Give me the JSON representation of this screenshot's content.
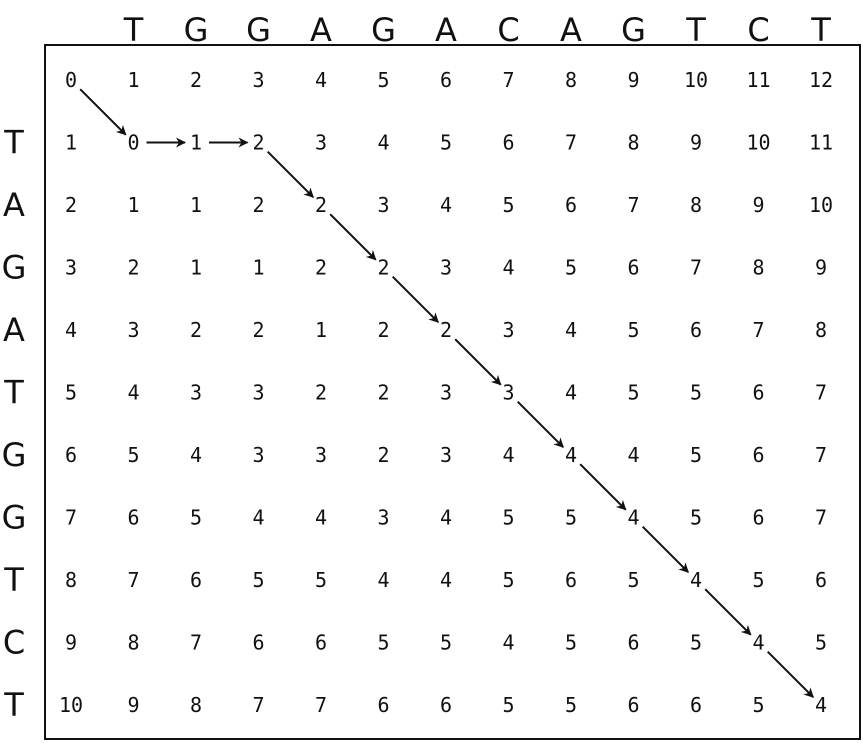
{
  "top_sequence": [
    "T",
    "G",
    "G",
    "A",
    "G",
    "A",
    "C",
    "A",
    "G",
    "T",
    "C",
    "T"
  ],
  "left_sequence": [
    "T",
    "A",
    "G",
    "A",
    "T",
    "G",
    "G",
    "T",
    "C",
    "T"
  ],
  "matrix": [
    [
      0,
      1,
      2,
      3,
      4,
      5,
      6,
      7,
      8,
      9,
      10,
      11,
      12
    ],
    [
      1,
      0,
      1,
      2,
      3,
      4,
      5,
      6,
      7,
      8,
      9,
      10,
      11
    ],
    [
      2,
      1,
      1,
      2,
      2,
      3,
      4,
      5,
      6,
      7,
      8,
      9,
      10
    ],
    [
      3,
      2,
      1,
      1,
      2,
      2,
      3,
      4,
      5,
      6,
      7,
      8,
      9
    ],
    [
      4,
      3,
      2,
      2,
      1,
      2,
      2,
      3,
      4,
      5,
      6,
      7,
      8
    ],
    [
      5,
      4,
      3,
      3,
      2,
      2,
      3,
      3,
      4,
      5,
      5,
      6,
      7
    ],
    [
      6,
      5,
      4,
      3,
      3,
      2,
      3,
      4,
      4,
      4,
      5,
      6,
      7
    ],
    [
      7,
      6,
      5,
      4,
      4,
      3,
      4,
      5,
      5,
      4,
      5,
      6,
      7
    ],
    [
      8,
      7,
      6,
      5,
      5,
      4,
      4,
      5,
      6,
      5,
      4,
      5,
      6
    ],
    [
      9,
      8,
      7,
      6,
      6,
      5,
      5,
      4,
      5,
      6,
      5,
      4,
      5
    ],
    [
      10,
      9,
      8,
      7,
      7,
      6,
      6,
      5,
      5,
      6,
      6,
      5,
      4
    ]
  ],
  "alignment_path": [
    [
      0,
      0
    ],
    [
      1,
      1
    ],
    [
      1,
      2
    ],
    [
      1,
      3
    ],
    [
      2,
      4
    ],
    [
      3,
      5
    ],
    [
      4,
      6
    ],
    [
      5,
      7
    ],
    [
      6,
      8
    ],
    [
      7,
      9
    ],
    [
      8,
      10
    ],
    [
      9,
      11
    ],
    [
      10,
      12
    ]
  ],
  "colors": {
    "ink": "#111111",
    "background": "#ffffff"
  }
}
